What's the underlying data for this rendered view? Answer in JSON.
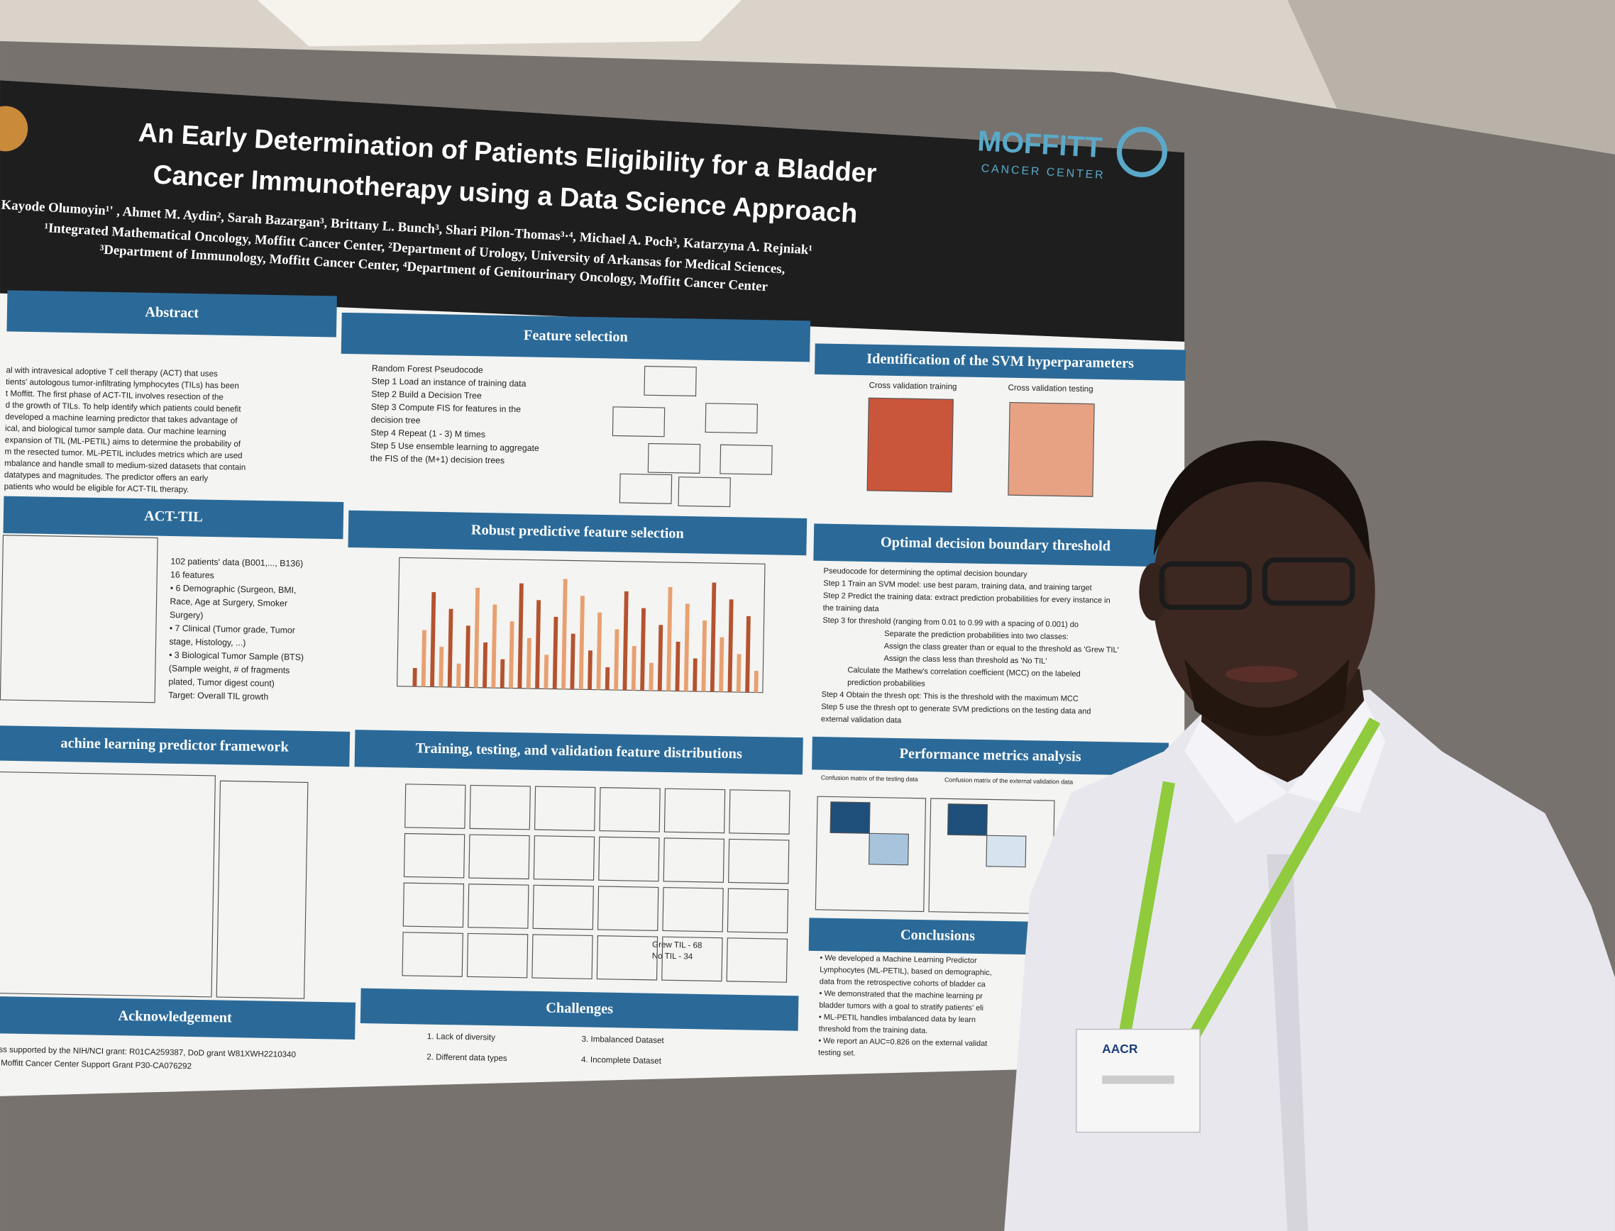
{
  "poster": {
    "title": [
      "An Early Determination of Patients Eligibility for a Bladder",
      "Cancer Immunotherapy using a Data Science Approach"
    ],
    "authors": "Kayode Olumoyin¹' , Ahmet M. Aydin², Sarah Bazargan³, Brittany L. Bunch³, Shari Pilon-Thomas³·⁴, Michael A. Poch³, Katarzyna A. Rejniak¹",
    "affiliations": [
      "¹Integrated Mathematical Oncology, Moffitt Cancer Center, ²Department of Urology, University of Arkansas for Medical Sciences,",
      "³Department of Immunology, Moffitt Cancer Center, ⁴Department of Genitourinary Oncology, Moffitt Cancer Center"
    ],
    "logo": {
      "name": "MOFFITT",
      "sub": "CANCER CENTER"
    },
    "sections": [
      {
        "heading": "Abstract",
        "lines": [
          "al with intravesical adoptive T cell therapy (ACT) that uses",
          "tients' autologous tumor-infiltrating lymphocytes (TILs) has been",
          "t Moffitt. The first phase of ACT-TIL involves resection of the",
          "d the growth of TILs. To help identify which patients could benefit",
          "developed a machine learning predictor that takes advantage of",
          "ical, and biological tumor sample data. Our machine learning",
          "expansion of TIL (ML-PETIL) aims to determine the probability of",
          "m the resected tumor.  ML-PETIL includes metrics which are used",
          "mbalance and handle small to medium-sized datasets that contain",
          "datatypes and magnitudes. The predictor offers an early",
          "patients who would be eligible for ACT-TIL therapy."
        ]
      },
      {
        "heading": "Feature selection",
        "lines": [
          "Random Forest Pseudocode",
          "Step 1 Load an instance of training data",
          "Step 2 Build a Decision Tree",
          "Step 3 Compute FIS for features in the",
          "decision tree",
          "Step 4 Repeat (1 - 3) M times",
          "Step 5 Use ensemble learning to aggregate",
          "the FIS of the (M+1) decision trees"
        ]
      },
      {
        "heading": "Identification of the  SVM hyperparameters",
        "lines": [
          "Cross validation training",
          "Cross validation testing"
        ]
      },
      {
        "heading": "ACT-TIL",
        "lines": [
          "102 patients' data (B001,..., B136)",
          "16 features",
          "• 6 Demographic (Surgeon, BMI,",
          "Race, Age at Surgery, Smoker",
          "Surgery)",
          "• 7 Clinical (Tumor grade, Tumor",
          "stage, Histology, ...)",
          "• 3 Biological Tumor Sample (BTS)",
          "(Sample weight, # of fragments",
          "plated, Tumor digest count)",
          "Target: Overall TIL growth"
        ]
      },
      {
        "heading": "Robust predictive feature selection",
        "lines": []
      },
      {
        "heading": "Optimal decision boundary threshold",
        "lines": [
          "Pseudocode for determining the optimal decision boundary",
          "Step 1 Train an SVM model: use best param, training data, and training target",
          "Step 2 Predict the training data: extract prediction probabilities for every instance in",
          "the training data",
          "Step 3 for threshold (ranging from 0.01 to 0.99 with a spacing of 0.001) do",
          "Separate the prediction probabilities into two classes:",
          "Assign the class greater than or equal to the threshold as 'Grew TIL'",
          "Assign the class less than threshold as 'No TIL'",
          "Calculate the Mathew's correlation coefficient (MCC) on the labeled",
          "prediction probabilities",
          "Step 4 Obtain the thresh opt: This is the threshold with the maximum MCC",
          "Step 5 use the thresh opt to generate SVM predictions on the testing data and",
          "external validation data"
        ]
      },
      {
        "heading": "achine learning predictor framework",
        "lines": []
      },
      {
        "heading": "Training, testing, and  validation feature distributions",
        "lines": [
          "Grew TIL - 68",
          "No TIL - 34"
        ]
      },
      {
        "heading": "Performance metrics analysis",
        "lines": [
          "Confusion matrix of the testing data",
          "Confusion matrix of the external validation data"
        ]
      },
      {
        "heading": "Conclusions",
        "lines": [
          "• We developed a Machine Learning Predictor",
          "Lymphocytes (ML-PETIL), based on demographic,",
          "data from the retrospective cohorts of bladder ca",
          "• We demonstrated that the machine learning pr",
          "bladder tumors with a goal to stratify patients' eli",
          "• ML-PETIL handles imbalanced data by learn",
          "threshold from the training data.",
          "• We report an AUC=0.826 on the external validat",
          "testing set."
        ]
      },
      {
        "heading": "Acknowledgement",
        "lines": [
          "ess supported by the NIH/NCI grant: R01CA259387, DoD grant W81XWH2210340",
          "d Moffitt Cancer Center Support Grant P30-CA076292"
        ]
      },
      {
        "heading": "Challenges",
        "lines": [
          "1. Lack of diversity",
          "2. Different data types",
          "3. Imbalanced Dataset",
          "4. Incomplete Dataset"
        ]
      }
    ]
  },
  "badge": {
    "org": "AACR"
  }
}
